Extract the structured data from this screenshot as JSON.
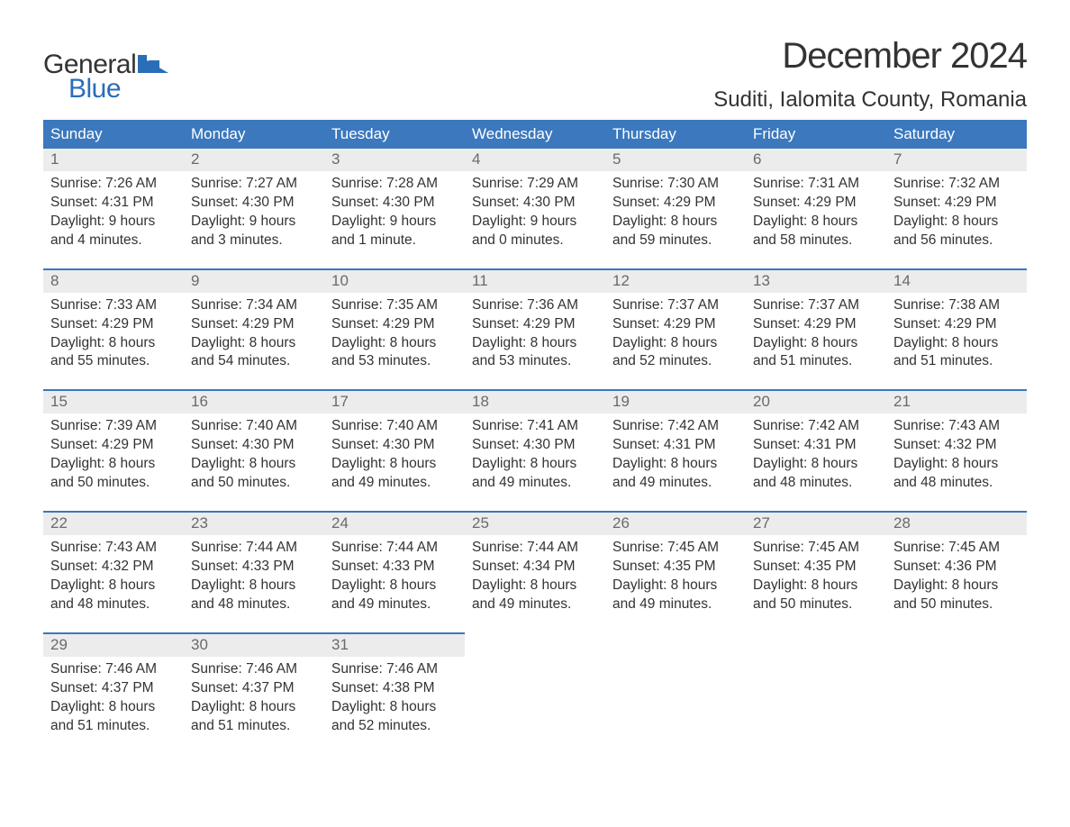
{
  "logo": {
    "text_top": "General",
    "text_bottom": "Blue",
    "icon_color": "#2a6db8",
    "text_color_top": "#333333",
    "text_color_bottom": "#2a6db8"
  },
  "title": "December 2024",
  "location": "Suditi, Ialomita County, Romania",
  "colors": {
    "header_bg": "#3b78bd",
    "header_fg": "#ffffff",
    "daynum_bg": "#ececec",
    "daynum_fg": "#6a6a6a",
    "row_border": "#3b78bd",
    "body_fg": "#333333",
    "page_bg": "#ffffff"
  },
  "typography": {
    "title_fontsize": 40,
    "location_fontsize": 24,
    "header_fontsize": 17,
    "daynum_fontsize": 17,
    "body_fontsize": 15.5,
    "font_family": "Arial"
  },
  "columns": [
    "Sunday",
    "Monday",
    "Tuesday",
    "Wednesday",
    "Thursday",
    "Friday",
    "Saturday"
  ],
  "weeks": [
    [
      {
        "num": "1",
        "sunrise": "Sunrise: 7:26 AM",
        "sunset": "Sunset: 4:31 PM",
        "day1": "Daylight: 9 hours",
        "day2": "and 4 minutes."
      },
      {
        "num": "2",
        "sunrise": "Sunrise: 7:27 AM",
        "sunset": "Sunset: 4:30 PM",
        "day1": "Daylight: 9 hours",
        "day2": "and 3 minutes."
      },
      {
        "num": "3",
        "sunrise": "Sunrise: 7:28 AM",
        "sunset": "Sunset: 4:30 PM",
        "day1": "Daylight: 9 hours",
        "day2": "and 1 minute."
      },
      {
        "num": "4",
        "sunrise": "Sunrise: 7:29 AM",
        "sunset": "Sunset: 4:30 PM",
        "day1": "Daylight: 9 hours",
        "day2": "and 0 minutes."
      },
      {
        "num": "5",
        "sunrise": "Sunrise: 7:30 AM",
        "sunset": "Sunset: 4:29 PM",
        "day1": "Daylight: 8 hours",
        "day2": "and 59 minutes."
      },
      {
        "num": "6",
        "sunrise": "Sunrise: 7:31 AM",
        "sunset": "Sunset: 4:29 PM",
        "day1": "Daylight: 8 hours",
        "day2": "and 58 minutes."
      },
      {
        "num": "7",
        "sunrise": "Sunrise: 7:32 AM",
        "sunset": "Sunset: 4:29 PM",
        "day1": "Daylight: 8 hours",
        "day2": "and 56 minutes."
      }
    ],
    [
      {
        "num": "8",
        "sunrise": "Sunrise: 7:33 AM",
        "sunset": "Sunset: 4:29 PM",
        "day1": "Daylight: 8 hours",
        "day2": "and 55 minutes."
      },
      {
        "num": "9",
        "sunrise": "Sunrise: 7:34 AM",
        "sunset": "Sunset: 4:29 PM",
        "day1": "Daylight: 8 hours",
        "day2": "and 54 minutes."
      },
      {
        "num": "10",
        "sunrise": "Sunrise: 7:35 AM",
        "sunset": "Sunset: 4:29 PM",
        "day1": "Daylight: 8 hours",
        "day2": "and 53 minutes."
      },
      {
        "num": "11",
        "sunrise": "Sunrise: 7:36 AM",
        "sunset": "Sunset: 4:29 PM",
        "day1": "Daylight: 8 hours",
        "day2": "and 53 minutes."
      },
      {
        "num": "12",
        "sunrise": "Sunrise: 7:37 AM",
        "sunset": "Sunset: 4:29 PM",
        "day1": "Daylight: 8 hours",
        "day2": "and 52 minutes."
      },
      {
        "num": "13",
        "sunrise": "Sunrise: 7:37 AM",
        "sunset": "Sunset: 4:29 PM",
        "day1": "Daylight: 8 hours",
        "day2": "and 51 minutes."
      },
      {
        "num": "14",
        "sunrise": "Sunrise: 7:38 AM",
        "sunset": "Sunset: 4:29 PM",
        "day1": "Daylight: 8 hours",
        "day2": "and 51 minutes."
      }
    ],
    [
      {
        "num": "15",
        "sunrise": "Sunrise: 7:39 AM",
        "sunset": "Sunset: 4:29 PM",
        "day1": "Daylight: 8 hours",
        "day2": "and 50 minutes."
      },
      {
        "num": "16",
        "sunrise": "Sunrise: 7:40 AM",
        "sunset": "Sunset: 4:30 PM",
        "day1": "Daylight: 8 hours",
        "day2": "and 50 minutes."
      },
      {
        "num": "17",
        "sunrise": "Sunrise: 7:40 AM",
        "sunset": "Sunset: 4:30 PM",
        "day1": "Daylight: 8 hours",
        "day2": "and 49 minutes."
      },
      {
        "num": "18",
        "sunrise": "Sunrise: 7:41 AM",
        "sunset": "Sunset: 4:30 PM",
        "day1": "Daylight: 8 hours",
        "day2": "and 49 minutes."
      },
      {
        "num": "19",
        "sunrise": "Sunrise: 7:42 AM",
        "sunset": "Sunset: 4:31 PM",
        "day1": "Daylight: 8 hours",
        "day2": "and 49 minutes."
      },
      {
        "num": "20",
        "sunrise": "Sunrise: 7:42 AM",
        "sunset": "Sunset: 4:31 PM",
        "day1": "Daylight: 8 hours",
        "day2": "and 48 minutes."
      },
      {
        "num": "21",
        "sunrise": "Sunrise: 7:43 AM",
        "sunset": "Sunset: 4:32 PM",
        "day1": "Daylight: 8 hours",
        "day2": "and 48 minutes."
      }
    ],
    [
      {
        "num": "22",
        "sunrise": "Sunrise: 7:43 AM",
        "sunset": "Sunset: 4:32 PM",
        "day1": "Daylight: 8 hours",
        "day2": "and 48 minutes."
      },
      {
        "num": "23",
        "sunrise": "Sunrise: 7:44 AM",
        "sunset": "Sunset: 4:33 PM",
        "day1": "Daylight: 8 hours",
        "day2": "and 48 minutes."
      },
      {
        "num": "24",
        "sunrise": "Sunrise: 7:44 AM",
        "sunset": "Sunset: 4:33 PM",
        "day1": "Daylight: 8 hours",
        "day2": "and 49 minutes."
      },
      {
        "num": "25",
        "sunrise": "Sunrise: 7:44 AM",
        "sunset": "Sunset: 4:34 PM",
        "day1": "Daylight: 8 hours",
        "day2": "and 49 minutes."
      },
      {
        "num": "26",
        "sunrise": "Sunrise: 7:45 AM",
        "sunset": "Sunset: 4:35 PM",
        "day1": "Daylight: 8 hours",
        "day2": "and 49 minutes."
      },
      {
        "num": "27",
        "sunrise": "Sunrise: 7:45 AM",
        "sunset": "Sunset: 4:35 PM",
        "day1": "Daylight: 8 hours",
        "day2": "and 50 minutes."
      },
      {
        "num": "28",
        "sunrise": "Sunrise: 7:45 AM",
        "sunset": "Sunset: 4:36 PM",
        "day1": "Daylight: 8 hours",
        "day2": "and 50 minutes."
      }
    ],
    [
      {
        "num": "29",
        "sunrise": "Sunrise: 7:46 AM",
        "sunset": "Sunset: 4:37 PM",
        "day1": "Daylight: 8 hours",
        "day2": "and 51 minutes."
      },
      {
        "num": "30",
        "sunrise": "Sunrise: 7:46 AM",
        "sunset": "Sunset: 4:37 PM",
        "day1": "Daylight: 8 hours",
        "day2": "and 51 minutes."
      },
      {
        "num": "31",
        "sunrise": "Sunrise: 7:46 AM",
        "sunset": "Sunset: 4:38 PM",
        "day1": "Daylight: 8 hours",
        "day2": "and 52 minutes."
      },
      null,
      null,
      null,
      null
    ]
  ]
}
